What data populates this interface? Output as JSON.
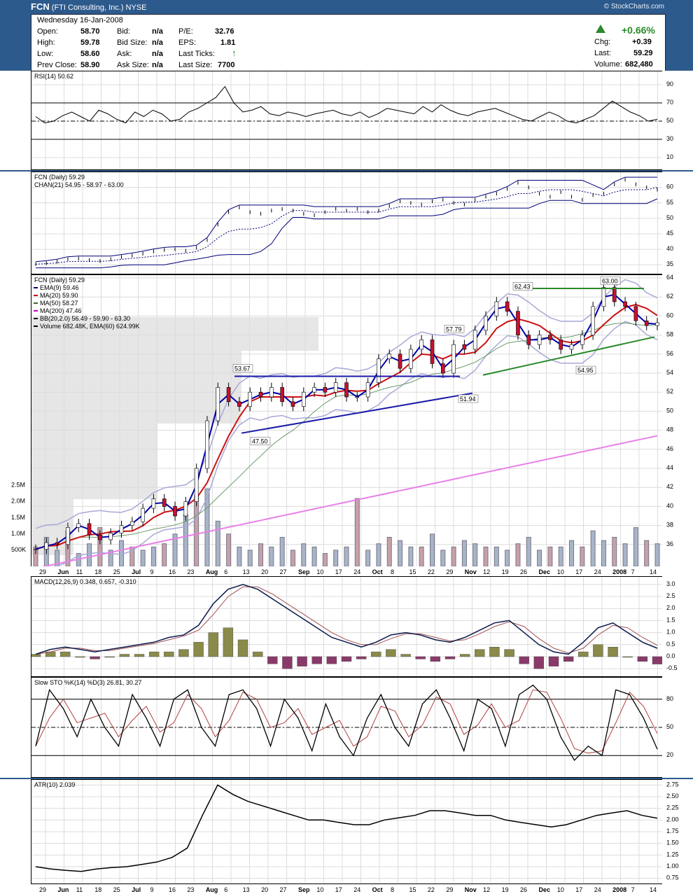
{
  "header": {
    "symbol": "FCN",
    "company": "(FTI Consulting, Inc.)",
    "exchange": "NYSE",
    "source": "© StockCharts.com"
  },
  "quote": {
    "date": "Wednesday  16-Jan-2008",
    "open_label": "Open:",
    "open": "58.70",
    "high_label": "High:",
    "high": "59.78",
    "low_label": "Low:",
    "low": "58.60",
    "prev_label": "Prev Close:",
    "prev": "58.90",
    "bid_label": "Bid:",
    "bid": "n/a",
    "bidsize_label": "Bid Size:",
    "bidsize": "n/a",
    "ask_label": "Ask:",
    "ask": "n/a",
    "asksize_label": "Ask Size:",
    "asksize": "n/a",
    "pe_label": "P/E:",
    "pe": "32.76",
    "eps_label": "EPS:",
    "eps": "1.81",
    "lastticks_label": "Last Ticks:",
    "lastsize_label": "Last Size:",
    "lastsize": "7700",
    "pct_change": "+0.66%",
    "chg_label": "Chg:",
    "chg": "+0.39",
    "last_label": "Last:",
    "last": "59.29",
    "volume_label": "Volume:",
    "volume": "682,480",
    "colors": {
      "up": "#2a8a2a"
    }
  },
  "chart_data": [
    {
      "type": "line",
      "title": "RSI(14) 50.62",
      "ylim": [
        0,
        100
      ],
      "yticks": [
        "90",
        "70",
        "50",
        "30",
        "10"
      ],
      "series": [
        {
          "name": "RSI(14)",
          "values": [
            55,
            48,
            50,
            56,
            60,
            55,
            50,
            62,
            58,
            52,
            48,
            60,
            55,
            62,
            58,
            50,
            52,
            60,
            64,
            70,
            76,
            88,
            70,
            60,
            62,
            66,
            58,
            56,
            60,
            58,
            55,
            58,
            60,
            62,
            58,
            56,
            60,
            54,
            58,
            64,
            62,
            60,
            58,
            66,
            60,
            68,
            62,
            58,
            56,
            60,
            62,
            64,
            60,
            56,
            52,
            50,
            55,
            60,
            56,
            50,
            48,
            52,
            56,
            64,
            72,
            66,
            60,
            56,
            50,
            52
          ]
        }
      ],
      "reference_lines": [
        70,
        50,
        30
      ]
    },
    {
      "type": "line",
      "title": "FCN (Daily) 59.29",
      "subtitle": "CHAN(21) 54.95 - 58.97 - 63.00",
      "ylim": [
        33,
        64
      ],
      "yticks": [
        "60",
        "55",
        "50",
        "45",
        "40",
        "35"
      ],
      "series": [
        {
          "name": "Price",
          "values": [
            35.2,
            35.5,
            36.0,
            36.8,
            37.0,
            36.5,
            36.2,
            36.8,
            37.5,
            38.0,
            38.6,
            39.3,
            39.8,
            40.0,
            39.5,
            40.5,
            43.0,
            48.0,
            52.0,
            53.5,
            52.0,
            51.5,
            52.5,
            53.0,
            52.5,
            51.5,
            51.0,
            52.0,
            53.0,
            52.5,
            53.0,
            52.0,
            52.5,
            54.0,
            55.5,
            55.0,
            54.5,
            55.5,
            56.0,
            55.0,
            54.5,
            56.0,
            57.0,
            58.0,
            59.5,
            61.5,
            60.0,
            58.0,
            57.0,
            58.5,
            57.0,
            56.0,
            57.5,
            58.0,
            61.0,
            62.5,
            61.0,
            60.0,
            59.29
          ]
        }
      ]
    },
    {
      "type": "bar",
      "title": "FCN (Daily) 59.29",
      "ylim": [
        34,
        64
      ],
      "yticks": [
        "64",
        "62",
        "60",
        "58",
        "56",
        "54",
        "52",
        "50",
        "48",
        "46",
        "44",
        "42",
        "40",
        "38",
        "36"
      ],
      "legend": [
        "EMA(9) 59.46",
        "MA(20) 59.90",
        "MA(50) 58.27",
        "MA(200) 47.46",
        "BB(20,2.0) 56.49 - 59.90 - 63.30",
        "Volume 682.48K, EMA(60) 624.99K"
      ],
      "volume_ticks": [
        "2.5M",
        "2.0M",
        "1.5M",
        "1.0M",
        "500K"
      ],
      "annotations": [
        "53.67",
        "47.50",
        "57.79",
        "51.94",
        "62.43",
        "63.00",
        "54.95"
      ],
      "series": [
        {
          "name": "Close",
          "values": [
            35.5,
            36.2,
            36.0,
            37.8,
            38.2,
            37.0,
            36.5,
            37.2,
            38.0,
            38.4,
            39.8,
            40.8,
            40.0,
            39.0,
            40.5,
            44.0,
            49.0,
            52.5,
            51.0,
            50.5,
            52.0,
            51.5,
            52.5,
            51.0,
            50.5,
            52.0,
            52.5,
            52.0,
            53.0,
            51.5,
            51.5,
            53.0,
            55.5,
            56.0,
            54.5,
            56.5,
            57.5,
            55.0,
            54.0,
            57.0,
            56.5,
            58.5,
            60.0,
            61.5,
            60.5,
            58.0,
            57.0,
            58.0,
            57.5,
            56.5,
            57.0,
            58.0,
            61.0,
            63.0,
            61.5,
            61.0,
            59.5,
            59.0,
            59.29
          ]
        },
        {
          "name": "Volume",
          "values": [
            0.6,
            0.9,
            0.5,
            1.1,
            0.4,
            0.7,
            1.2,
            0.5,
            0.8,
            0.6,
            0.5,
            0.6,
            0.7,
            1.0,
            1.6,
            2.2,
            2.4,
            1.4,
            1.0,
            0.6,
            0.5,
            0.7,
            0.6,
            0.9,
            0.5,
            0.7,
            0.6,
            0.4,
            0.5,
            0.6,
            2.1,
            0.5,
            0.7,
            0.9,
            0.8,
            0.6,
            0.6,
            1.0,
            0.5,
            0.6,
            0.8,
            0.7,
            0.6,
            0.6,
            0.5,
            0.7,
            0.9,
            0.5,
            0.6,
            0.6,
            0.8,
            0.6,
            1.1,
            0.8,
            0.9,
            0.7,
            1.2,
            0.8,
            0.7
          ]
        }
      ]
    },
    {
      "type": "bar",
      "title": "MACD(12,26,9) 0.348, 0.657, -0.310",
      "ylim": [
        -0.7,
        3.2
      ],
      "yticks": [
        "3.0",
        "2.5",
        "2.0",
        "1.5",
        "1.0",
        "0.5",
        "0.0",
        "-0.5"
      ],
      "series": [
        {
          "name": "MACD",
          "values": [
            0.1,
            0.3,
            0.4,
            0.3,
            0.2,
            0.3,
            0.4,
            0.5,
            0.6,
            0.8,
            0.9,
            1.3,
            2.2,
            2.8,
            3.0,
            2.8,
            2.4,
            2.0,
            1.6,
            1.2,
            0.8,
            0.6,
            0.4,
            0.6,
            0.9,
            1.0,
            0.9,
            0.7,
            0.6,
            0.8,
            1.1,
            1.4,
            1.5,
            1.0,
            0.5,
            0.2,
            0.1,
            0.6,
            1.2,
            1.4,
            1.0,
            0.6,
            0.348
          ]
        },
        {
          "name": "Histogram",
          "values": [
            0.1,
            0.2,
            0.2,
            0.0,
            -0.1,
            0.0,
            0.1,
            0.1,
            0.2,
            0.2,
            0.3,
            0.6,
            1.0,
            1.2,
            0.7,
            0.2,
            -0.3,
            -0.5,
            -0.4,
            -0.3,
            -0.3,
            -0.2,
            -0.1,
            0.2,
            0.3,
            0.1,
            -0.1,
            -0.2,
            -0.1,
            0.1,
            0.3,
            0.4,
            0.3,
            -0.3,
            -0.5,
            -0.4,
            -0.2,
            0.2,
            0.5,
            0.4,
            0.0,
            -0.2,
            -0.31
          ]
        }
      ]
    },
    {
      "type": "line",
      "title": "Slow STO %K(14) %D(3) 26.81, 30.27",
      "ylim": [
        0,
        100
      ],
      "yticks": [
        "80",
        "50",
        "20"
      ],
      "series": [
        {
          "name": "%K",
          "values": [
            30,
            90,
            70,
            40,
            80,
            50,
            30,
            85,
            60,
            30,
            80,
            90,
            50,
            30,
            85,
            90,
            70,
            30,
            80,
            60,
            25,
            75,
            40,
            20,
            60,
            85,
            50,
            30,
            75,
            90,
            60,
            25,
            80,
            70,
            30,
            85,
            95,
            80,
            40,
            15,
            30,
            20,
            90,
            85,
            60,
            26.81
          ]
        }
      ],
      "reference_lines": [
        80,
        50,
        20
      ]
    },
    {
      "type": "line",
      "title": "ATR(10) 2.039",
      "ylim": [
        0.7,
        2.8
      ],
      "yticks": [
        "2.75",
        "2.50",
        "2.25",
        "2.00",
        "1.75",
        "1.50",
        "1.25",
        "1.00",
        "0.75"
      ],
      "series": [
        {
          "name": "ATR(10)",
          "values": [
            1.0,
            0.95,
            0.92,
            0.9,
            0.95,
            0.98,
            1.0,
            1.05,
            1.1,
            1.2,
            1.4,
            2.1,
            2.75,
            2.55,
            2.4,
            2.3,
            2.2,
            2.1,
            2.0,
            2.0,
            1.95,
            1.9,
            1.9,
            2.0,
            2.05,
            2.1,
            2.2,
            2.2,
            2.15,
            2.1,
            2.1,
            2.0,
            1.95,
            1.9,
            1.85,
            1.9,
            2.0,
            2.1,
            2.15,
            2.2,
            2.1,
            2.039
          ]
        }
      ]
    }
  ],
  "x_axis_labels": [
    "29",
    "Jun",
    "11",
    "18",
    "25",
    "Jul",
    "9",
    "16",
    "23",
    "Aug",
    "6",
    "13",
    "20",
    "27",
    "Sep",
    "10",
    "17",
    "24",
    "Oct",
    "8",
    "15",
    "22",
    "29",
    "Nov",
    "12",
    "19",
    "26",
    "Dec",
    "10",
    "17",
    "24",
    "2008",
    "7",
    "14"
  ]
}
